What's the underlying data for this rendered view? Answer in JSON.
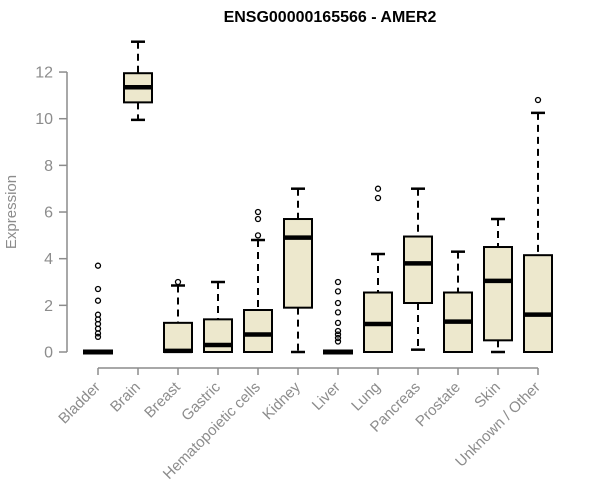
{
  "chart_data": {
    "type": "boxplot",
    "title": "ENSG00000165566 - AMER2",
    "ylabel": "Expression",
    "xlabel": "",
    "ylim": [
      0,
      13.5
    ],
    "yticks": [
      0,
      2,
      4,
      6,
      8,
      10,
      12
    ],
    "grid": false,
    "legend": "none",
    "box_fill": "#ede8cd",
    "box_stroke": "#000000",
    "median_color": "#000000",
    "axis_color": "#8c8c8c",
    "categories": [
      "Bladder",
      "Brain",
      "Breast",
      "Gastric",
      "Hematopoietic cells",
      "Kidney",
      "Liver",
      "Lung",
      "Pancreas",
      "Prostate",
      "Skin",
      "Unknown / Other"
    ],
    "boxes": [
      {
        "label": "Bladder",
        "low": 0,
        "q1": 0,
        "median": 0,
        "q3": 0,
        "high": 0,
        "outliers": [
          0.65,
          0.8,
          1.0,
          1.2,
          1.4,
          1.6,
          2.2,
          2.7,
          3.7
        ]
      },
      {
        "label": "Brain",
        "low": 9.95,
        "q1": 10.7,
        "median": 11.35,
        "q3": 11.95,
        "high": 13.3,
        "outliers": []
      },
      {
        "label": "Breast",
        "low": 0,
        "q1": 0,
        "median": 0.05,
        "q3": 1.25,
        "high": 2.85,
        "outliers": [
          3.0
        ]
      },
      {
        "label": "Gastric",
        "low": 0,
        "q1": 0,
        "median": 0.3,
        "q3": 1.4,
        "high": 3.0,
        "outliers": []
      },
      {
        "label": "Hematopoietic cells",
        "low": 0,
        "q1": 0,
        "median": 0.75,
        "q3": 1.8,
        "high": 4.8,
        "outliers": [
          5.0,
          5.7,
          6.0
        ]
      },
      {
        "label": "Kidney",
        "low": 0,
        "q1": 1.9,
        "median": 4.9,
        "q3": 5.7,
        "high": 7.0,
        "outliers": []
      },
      {
        "label": "Liver",
        "low": 0,
        "q1": 0,
        "median": 0,
        "q3": 0,
        "high": 0,
        "outliers": [
          0.45,
          0.6,
          0.75,
          0.9,
          1.25,
          1.7,
          2.1,
          2.6,
          3.0
        ]
      },
      {
        "label": "Lung",
        "low": 0,
        "q1": 0,
        "median": 1.2,
        "q3": 2.55,
        "high": 4.2,
        "outliers": [
          6.6,
          7.0
        ]
      },
      {
        "label": "Pancreas",
        "low": 0.1,
        "q1": 2.1,
        "median": 3.8,
        "q3": 4.95,
        "high": 7.0,
        "outliers": []
      },
      {
        "label": "Prostate",
        "low": 0,
        "q1": 0,
        "median": 1.3,
        "q3": 2.55,
        "high": 4.3,
        "outliers": []
      },
      {
        "label": "Skin",
        "low": 0,
        "q1": 0.5,
        "median": 3.05,
        "q3": 4.5,
        "high": 5.7,
        "outliers": []
      },
      {
        "label": "Unknown / Other",
        "low": 0,
        "q1": 0,
        "median": 1.6,
        "q3": 4.15,
        "high": 10.25,
        "outliers": [
          10.8
        ]
      }
    ]
  }
}
